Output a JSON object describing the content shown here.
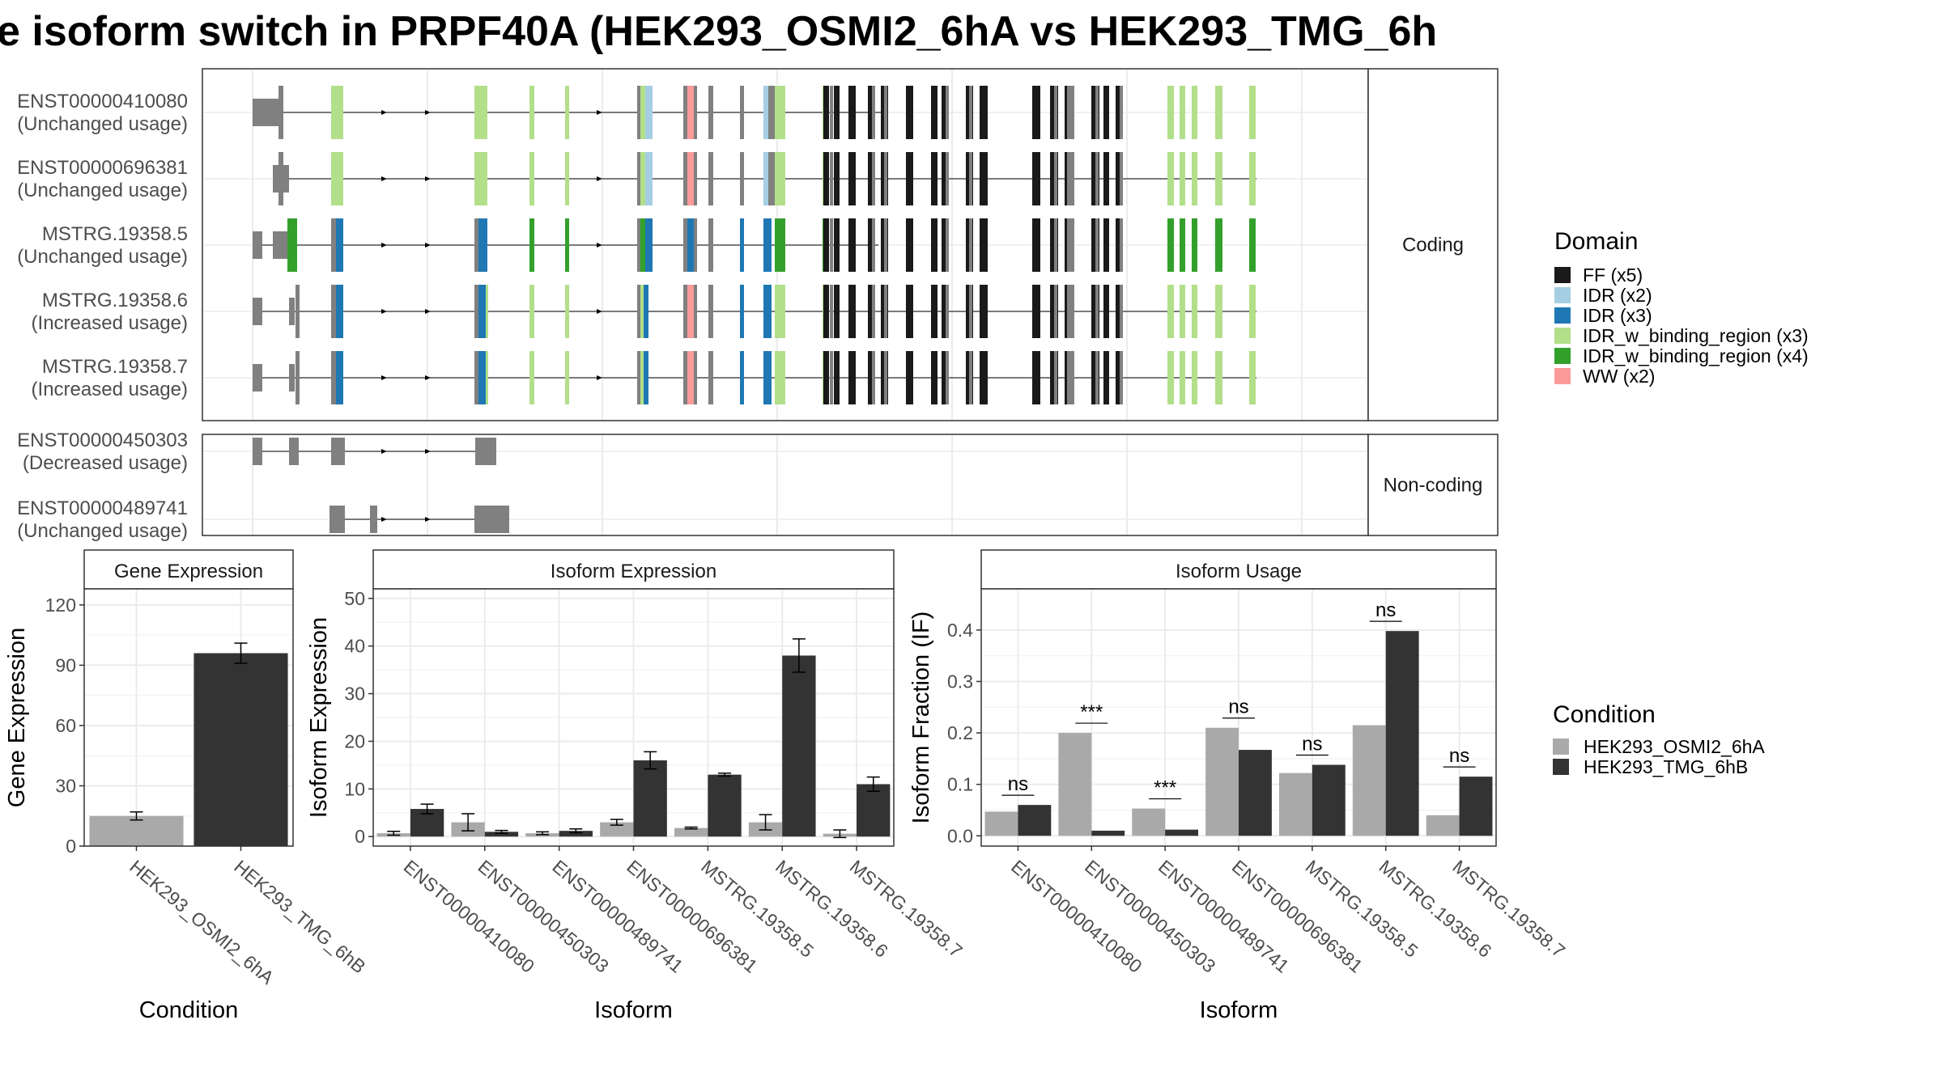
{
  "title": "e isoform switch in PRPF40A (HEK293_OSMI2_6hA vs HEK293_TMG_6h",
  "colors": {
    "FF": "#1a1a1a",
    "IDR_a": "#a6cee3",
    "IDR_b": "#1f78b4",
    "IDRbind_a": "#b2df8a",
    "IDRbind_b": "#33a02c",
    "WW": "#fb9a99",
    "exon": "#808080",
    "cond1": "#a9a9a9",
    "cond2": "#333333",
    "panel_border": "#333333",
    "strip_fill": "#ffffff",
    "grid": "#ebebeb"
  },
  "transcript_panel": {
    "strips": {
      "coding": "Coding",
      "noncoding": "Non-coding"
    },
    "transcripts": [
      {
        "id": "ENST00000410080",
        "usage": "(Unchanged usage)",
        "group": "coding",
        "row": 0,
        "variant": "full",
        "utr5": "a",
        "utr3": 1055
      },
      {
        "id": "ENST00000696381",
        "usage": "(Unchanged usage)",
        "group": "coding",
        "row": 1,
        "variant": "full",
        "utr5": "b",
        "utr3": null
      },
      {
        "id": "MSTRG.19358.5",
        "usage": "(Unchanged usage)",
        "group": "coding",
        "row": 2,
        "variant": "alt",
        "utr5": "c",
        "utr3": 1045
      },
      {
        "id": "MSTRG.19358.6",
        "usage": "(Increased usage)",
        "group": "coding",
        "row": 3,
        "variant": "short",
        "utr5": "d",
        "utr3": null
      },
      {
        "id": "MSTRG.19358.7",
        "usage": "(Increased usage)",
        "group": "coding",
        "row": 4,
        "variant": "short",
        "utr5": "d",
        "utr3": null
      },
      {
        "id": "ENST00000450303",
        "usage": "(Decreased usage)",
        "group": "noncoding",
        "row": 0,
        "variant": "nc1"
      },
      {
        "id": "ENST00000489741",
        "usage": "(Unchanged usage)",
        "group": "noncoding",
        "row": 1,
        "variant": "nc2"
      }
    ]
  },
  "domain_legend": {
    "title": "Domain",
    "items": [
      {
        "label": "FF (x5)",
        "color_key": "FF"
      },
      {
        "label": "IDR (x2)",
        "color_key": "IDR_a"
      },
      {
        "label": "IDR (x3)",
        "color_key": "IDR_b"
      },
      {
        "label": "IDR_w_binding_region (x3)",
        "color_key": "IDRbind_a"
      },
      {
        "label": "IDR_w_binding_region (x4)",
        "color_key": "IDRbind_b"
      },
      {
        "label": "WW (x2)",
        "color_key": "WW"
      }
    ]
  },
  "condition_legend": {
    "title": "Condition",
    "items": [
      {
        "label": "HEK293_OSMI2_6hA",
        "color_key": "cond1"
      },
      {
        "label": "HEK293_TMG_6hB",
        "color_key": "cond2"
      }
    ]
  },
  "chart_data": [
    {
      "type": "bar",
      "title": "Gene Expression",
      "xlabel": "Condition",
      "ylabel": "Gene Expression",
      "ylim": [
        0,
        128
      ],
      "yticks": [
        0,
        30,
        60,
        90,
        120
      ],
      "categories": [
        "HEK293_OSMI2_6hA",
        "HEK293_TMG_6hB"
      ],
      "values": [
        15,
        96
      ],
      "errors": [
        2,
        5
      ]
    },
    {
      "type": "bar",
      "title": "Isoform Expression",
      "xlabel": "Isoform",
      "ylabel": "Isoform Expression",
      "ylim": [
        -2,
        52
      ],
      "yticks": [
        0,
        10,
        20,
        30,
        40,
        50
      ],
      "categories": [
        "ENST00000410080",
        "ENST00000450303",
        "ENST00000489741",
        "ENST00000696381",
        "MSTRG.19358.5",
        "MSTRG.19358.6",
        "MSTRG.19358.7"
      ],
      "series": [
        {
          "name": "HEK293_OSMI2_6hA",
          "values": [
            0.7,
            3,
            0.7,
            3,
            1.8,
            3,
            0.6
          ],
          "errors": [
            0.4,
            1.8,
            0.3,
            0.6,
            0.2,
            1.6,
            0.8
          ]
        },
        {
          "name": "HEK293_TMG_6hB",
          "values": [
            5.8,
            1,
            1.2,
            16,
            13,
            38,
            11
          ],
          "errors": [
            1,
            0.3,
            0.4,
            1.8,
            0.3,
            3.5,
            1.5
          ]
        }
      ]
    },
    {
      "type": "bar",
      "title": "Isoform Usage",
      "xlabel": "Isoform",
      "ylabel": "Isoform Fraction (IF)",
      "ylim": [
        -0.02,
        0.48
      ],
      "yticks": [
        0.0,
        0.1,
        0.2,
        0.3,
        0.4
      ],
      "ytick_labels": [
        "0.0",
        "0.1",
        "0.2",
        "0.3",
        "0.4"
      ],
      "categories": [
        "ENST00000410080",
        "ENST00000450303",
        "ENST00000489741",
        "ENST00000696381",
        "MSTRG.19358.5",
        "MSTRG.19358.6",
        "MSTRG.19358.7"
      ],
      "series": [
        {
          "name": "HEK293_OSMI2_6hA",
          "values": [
            0.047,
            0.2,
            0.053,
            0.21,
            0.122,
            0.215,
            0.04
          ]
        },
        {
          "name": "HEK293_TMG_6hB",
          "values": [
            0.06,
            0.01,
            0.012,
            0.167,
            0.138,
            0.398,
            0.115
          ]
        }
      ],
      "significance": [
        "ns",
        "***",
        "***",
        "ns",
        "ns",
        "ns",
        "ns"
      ]
    }
  ]
}
